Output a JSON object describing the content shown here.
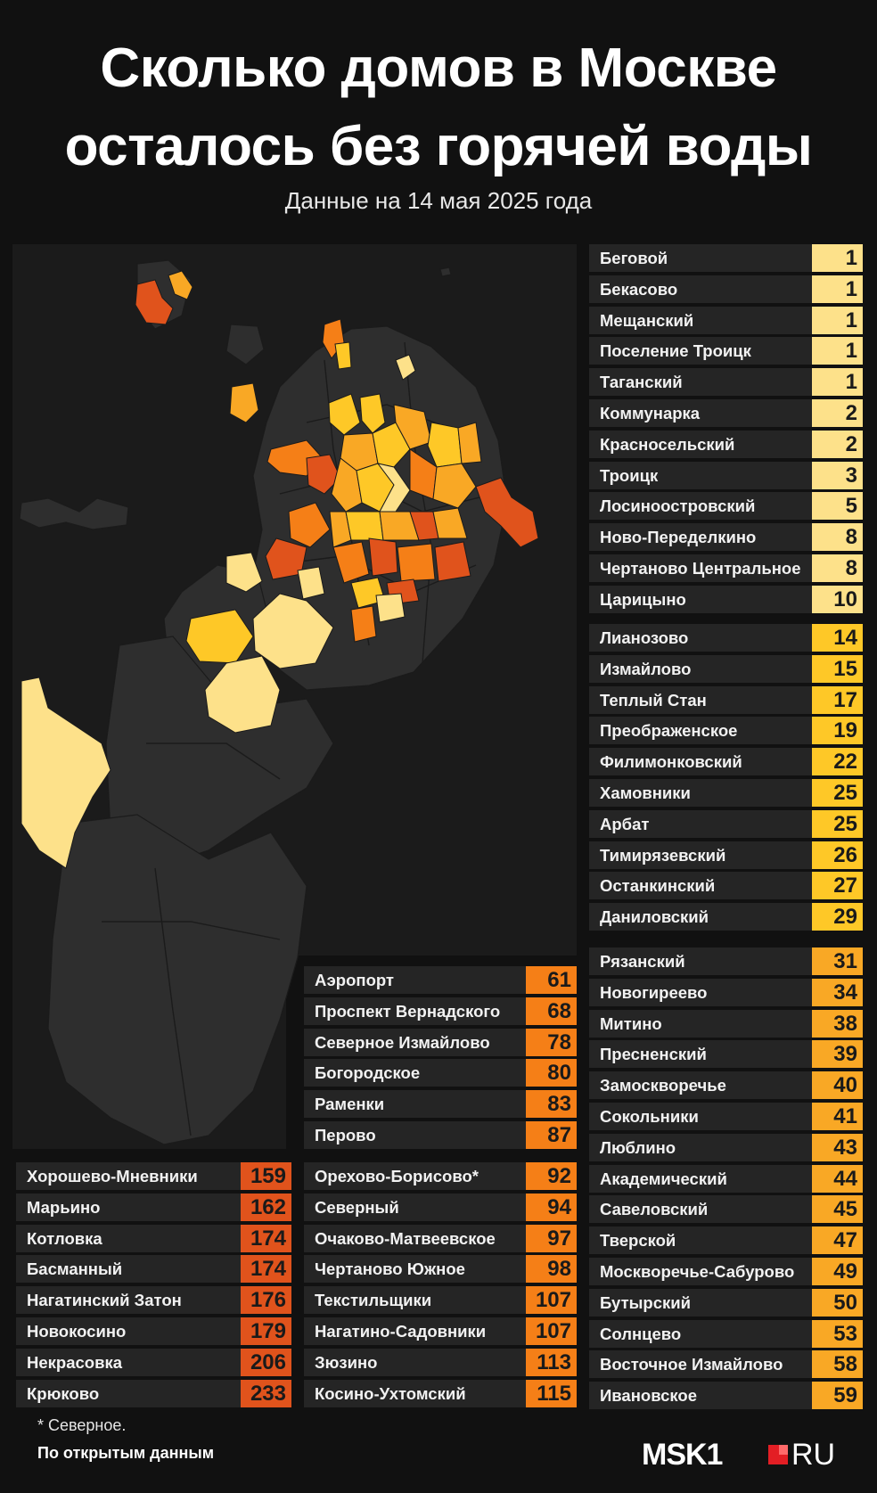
{
  "title_line1": "Сколько домов в Москве",
  "title_line2": "осталось без горячей воды",
  "subtitle": "Данные на 14 мая 2025 года",
  "colors": {
    "background": "#111111",
    "panel": "#1b1b1b",
    "row": "#252525",
    "district_no_data": "#2e2e2e",
    "scale_1_10": "#fde18a",
    "scale_11_30": "#fec827",
    "scale_31_60": "#f9a825",
    "scale_61_120": "#f57f17",
    "scale_150_plus": "#e0531c"
  },
  "list_a": [
    {
      "name": "Беговой",
      "value": "1"
    },
    {
      "name": "Бекасово",
      "value": "1"
    },
    {
      "name": "Мещанский",
      "value": "1"
    },
    {
      "name": "Поселение Троицк",
      "value": "1"
    },
    {
      "name": "Таганский",
      "value": "1"
    },
    {
      "name": "Коммунарка",
      "value": "2"
    },
    {
      "name": "Красносельский",
      "value": "2"
    },
    {
      "name": "Троицк",
      "value": "3"
    },
    {
      "name": "Лосиноостровский",
      "value": "5"
    },
    {
      "name": "Ново-Переделкино",
      "value": "8"
    },
    {
      "name": "Чертаново Центральное",
      "value": "8"
    },
    {
      "name": "Царицыно",
      "value": "10"
    }
  ],
  "list_b": [
    {
      "name": "Лианозово",
      "value": "14"
    },
    {
      "name": "Измайлово",
      "value": "15"
    },
    {
      "name": "Теплый Стан",
      "value": "17"
    },
    {
      "name": "Преображенское",
      "value": "19"
    },
    {
      "name": "Филимонковский",
      "value": "22"
    },
    {
      "name": "Хамовники",
      "value": "25"
    },
    {
      "name": "Арбат",
      "value": "25"
    },
    {
      "name": "Тимирязевский",
      "value": "26"
    },
    {
      "name": "Останкинский",
      "value": "27"
    },
    {
      "name": "Даниловский",
      "value": "29"
    }
  ],
  "list_c": [
    {
      "name": "Рязанский",
      "value": "31"
    },
    {
      "name": "Новогиреево",
      "value": "34"
    },
    {
      "name": "Митино",
      "value": "38"
    },
    {
      "name": "Пресненский",
      "value": "39"
    },
    {
      "name": "Замоскворечье",
      "value": "40"
    },
    {
      "name": "Сокольники",
      "value": "41"
    },
    {
      "name": "Люблино",
      "value": "43"
    },
    {
      "name": "Академический",
      "value": "44"
    },
    {
      "name": "Савеловский",
      "value": "45"
    },
    {
      "name": "Тверской",
      "value": "47"
    },
    {
      "name": "Москворечье-Сабурово",
      "value": "49"
    },
    {
      "name": "Бутырский",
      "value": "50"
    },
    {
      "name": "Солнцево",
      "value": "53"
    },
    {
      "name": "Восточное Измайлово",
      "value": "58"
    },
    {
      "name": "Ивановское",
      "value": "59"
    }
  ],
  "list_d": [
    {
      "name": "Аэропорт",
      "value": "61"
    },
    {
      "name": "Проспект Вернадского",
      "value": "68"
    },
    {
      "name": "Северное Измайлово",
      "value": "78"
    },
    {
      "name": "Богородское",
      "value": "80"
    },
    {
      "name": "Раменки",
      "value": "83"
    },
    {
      "name": "Перово",
      "value": "87"
    }
  ],
  "list_e": [
    {
      "name": "Орехово-Борисово*",
      "value": "92"
    },
    {
      "name": "Северный",
      "value": "94"
    },
    {
      "name": "Очаково-Матвеевское",
      "value": "97"
    },
    {
      "name": "Чертаново Южное",
      "value": "98"
    },
    {
      "name": "Текстильщики",
      "value": "107"
    },
    {
      "name": "Нагатино-Садовники",
      "value": "107"
    },
    {
      "name": "Зюзино",
      "value": "113"
    },
    {
      "name": "Косино-Ухтомский",
      "value": "115"
    }
  ],
  "list_f": [
    {
      "name": "Хорошево-Мневники",
      "value": "159"
    },
    {
      "name": "Марьино",
      "value": "162"
    },
    {
      "name": "Котловка",
      "value": "174"
    },
    {
      "name": "Басманный",
      "value": "174"
    },
    {
      "name": "Нагатинский Затон",
      "value": "176"
    },
    {
      "name": "Новокосино",
      "value": "179"
    },
    {
      "name": "Некрасовка",
      "value": "206"
    },
    {
      "name": "Крюково",
      "value": "233"
    }
  ],
  "footnote": "* Северное.",
  "source": "По открытым данным",
  "logo_main": "MSK1",
  "logo_suffix": "RU"
}
